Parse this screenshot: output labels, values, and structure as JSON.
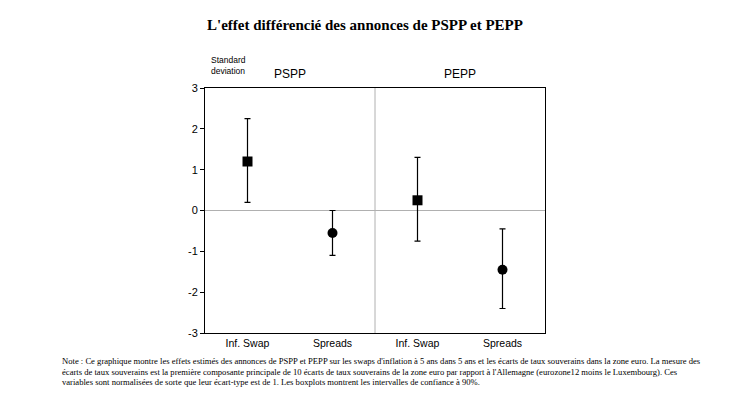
{
  "chart_data": {
    "type": "scatter",
    "title": "L'effet différencié des annonces de PSPP et PEPP",
    "ylabel": "Standard deviation",
    "panels": [
      "PSPP",
      "PEPP"
    ],
    "categories": [
      "Inf. Swap",
      "Spreads",
      "Inf. Swap",
      "Spreads"
    ],
    "series": [
      {
        "marker": "square",
        "values": [
          1.2,
          null,
          0.25,
          null
        ],
        "ci_low": [
          0.2,
          null,
          -0.75,
          null
        ],
        "ci_high": [
          2.25,
          null,
          1.3,
          null
        ]
      },
      {
        "marker": "circle",
        "values": [
          null,
          -0.55,
          null,
          -1.45
        ],
        "ci_low": [
          null,
          -1.1,
          null,
          -2.4
        ],
        "ci_high": [
          null,
          0.0,
          null,
          -0.45
        ]
      }
    ],
    "color": "#000000",
    "ylim": [
      -3,
      3
    ],
    "yticks": [
      -3,
      -2,
      -1,
      0,
      1,
      2,
      3
    ],
    "grid": false,
    "note": "Note : Ce graphique montre les effets estimés des annonces de PSPP et PEPP sur les swaps d'inflation à 5 ans dans 5 ans et les écarts de taux souverains dans la zone euro. La mesure des écarts de taux souverains est la première composante principale de 10 écarts de taux souverains de la zone euro par rapport à l'Allemagne (eurozone12 moins le Luxembourg). Ces variables sont normalisées de sorte que leur écart-type est de 1. Les boxplots montrent les intervalles de confiance à 90%."
  }
}
